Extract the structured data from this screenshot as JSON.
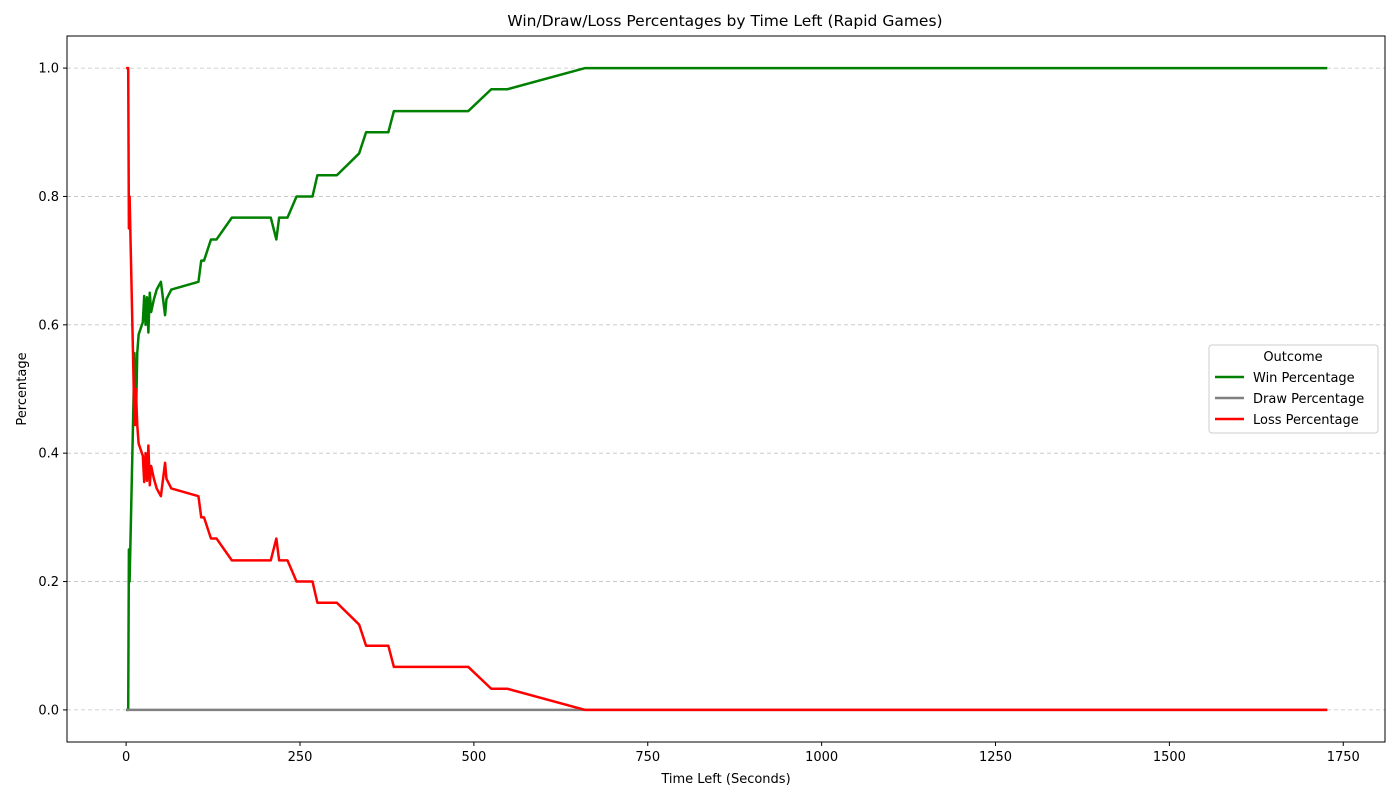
{
  "chart_data": {
    "type": "line",
    "title": "Win/Draw/Loss Percentages by Time Left (Rapid Games)",
    "xlabel": "Time Left (Seconds)",
    "ylabel": "Percentage",
    "xlim": [
      -85,
      1810
    ],
    "ylim": [
      -0.05,
      1.05
    ],
    "xticks": [
      0,
      250,
      500,
      750,
      1000,
      1250,
      1500,
      1750
    ],
    "yticks": [
      0.0,
      0.2,
      0.4,
      0.6,
      0.8,
      1.0
    ],
    "ytick_labels": [
      "0.0",
      "0.2",
      "0.4",
      "0.6",
      "0.8",
      "1.0"
    ],
    "grid": "y-dashed",
    "legend": {
      "title": "Outcome",
      "position": "center-right"
    },
    "series": [
      {
        "name": "Win Percentage",
        "color": "#008000",
        "points": [
          [
            0,
            0
          ],
          [
            2,
            0
          ],
          [
            3,
            0
          ],
          [
            4,
            0.25
          ],
          [
            5,
            0.2
          ],
          [
            6,
            0.25
          ],
          [
            10,
            0.45
          ],
          [
            12,
            0.556
          ],
          [
            14,
            0.444
          ],
          [
            16,
            0.556
          ],
          [
            18,
            0.585
          ],
          [
            24,
            0.604
          ],
          [
            26,
            0.645
          ],
          [
            28,
            0.6
          ],
          [
            30,
            0.643
          ],
          [
            32,
            0.588
          ],
          [
            34,
            0.65
          ],
          [
            36,
            0.62
          ],
          [
            40,
            0.64
          ],
          [
            44,
            0.655
          ],
          [
            50,
            0.667
          ],
          [
            56,
            0.615
          ],
          [
            58,
            0.64
          ],
          [
            65,
            0.655
          ],
          [
            104,
            0.667
          ],
          [
            108,
            0.7
          ],
          [
            112,
            0.7
          ],
          [
            122,
            0.733
          ],
          [
            130,
            0.733
          ],
          [
            152,
            0.767
          ],
          [
            208,
            0.767
          ],
          [
            216,
            0.733
          ],
          [
            220,
            0.767
          ],
          [
            232,
            0.767
          ],
          [
            245,
            0.8
          ],
          [
            268,
            0.8
          ],
          [
            275,
            0.833
          ],
          [
            303,
            0.833
          ],
          [
            335,
            0.867
          ],
          [
            345,
            0.9
          ],
          [
            377,
            0.9
          ],
          [
            385,
            0.933
          ],
          [
            492,
            0.933
          ],
          [
            525,
            0.967
          ],
          [
            548,
            0.967
          ],
          [
            660,
            1.0
          ],
          [
            1727,
            1.0
          ]
        ]
      },
      {
        "name": "Draw Percentage",
        "color": "#808080",
        "points": [
          [
            0,
            0
          ],
          [
            1727,
            0
          ]
        ]
      },
      {
        "name": "Loss Percentage",
        "color": "#ff0000",
        "points": [
          [
            0,
            1.0
          ],
          [
            2,
            1.0
          ],
          [
            3,
            1.0
          ],
          [
            4,
            0.75
          ],
          [
            5,
            0.8
          ],
          [
            6,
            0.75
          ],
          [
            10,
            0.55
          ],
          [
            12,
            0.444
          ],
          [
            14,
            0.5
          ],
          [
            16,
            0.444
          ],
          [
            18,
            0.415
          ],
          [
            24,
            0.396
          ],
          [
            26,
            0.355
          ],
          [
            28,
            0.4
          ],
          [
            30,
            0.357
          ],
          [
            32,
            0.412
          ],
          [
            34,
            0.35
          ],
          [
            36,
            0.38
          ],
          [
            40,
            0.36
          ],
          [
            44,
            0.345
          ],
          [
            50,
            0.333
          ],
          [
            56,
            0.385
          ],
          [
            58,
            0.36
          ],
          [
            65,
            0.345
          ],
          [
            104,
            0.333
          ],
          [
            108,
            0.3
          ],
          [
            112,
            0.3
          ],
          [
            122,
            0.267
          ],
          [
            130,
            0.267
          ],
          [
            152,
            0.233
          ],
          [
            208,
            0.233
          ],
          [
            216,
            0.267
          ],
          [
            220,
            0.233
          ],
          [
            232,
            0.233
          ],
          [
            245,
            0.2
          ],
          [
            268,
            0.2
          ],
          [
            275,
            0.167
          ],
          [
            303,
            0.167
          ],
          [
            335,
            0.133
          ],
          [
            345,
            0.1
          ],
          [
            377,
            0.1
          ],
          [
            385,
            0.067
          ],
          [
            492,
            0.067
          ],
          [
            525,
            0.033
          ],
          [
            548,
            0.033
          ],
          [
            660,
            0.0
          ],
          [
            1727,
            0.0
          ]
        ]
      }
    ]
  }
}
